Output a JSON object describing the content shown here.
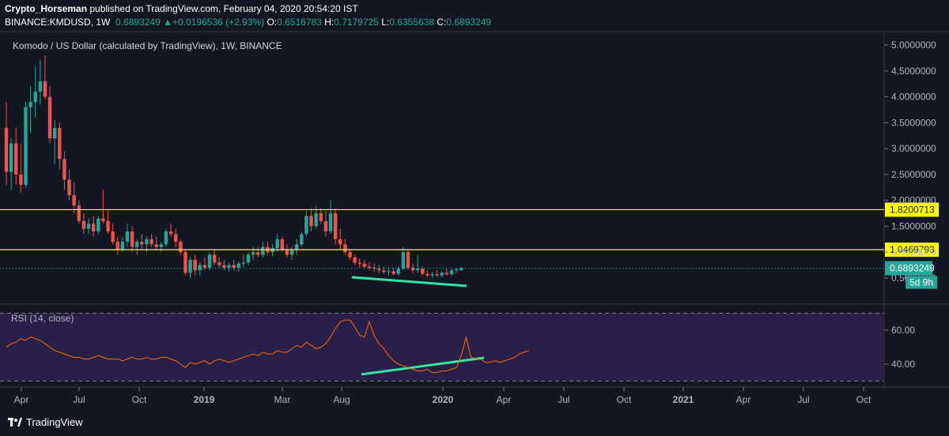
{
  "header": {
    "author": "Crypto_Horseman",
    "published_text": " published on TradingView.com, February 04, 2020 20:54:20 IST",
    "symbol": "BINANCE:KMDUSD, 1W",
    "price": "0.6893249",
    "change": "+0.0196536 (+2.93%)",
    "o_label": "O:",
    "o_value": "0.6516783",
    "h_label": "H:",
    "h_value": "0.7179725",
    "l_label": "L:",
    "l_value": "0.6355638",
    "c_label": "C:",
    "c_value": "0.6893249"
  },
  "main_legend": "Komodo / US Dollar (calculated by TradingView), 1W, BINANCE",
  "rsi_legend": "RSI (14, close)",
  "branding": "TradingView",
  "colors": {
    "up": "#26a69a",
    "down": "#ef5350",
    "level": "#ffff00",
    "trend": "#2ee8a0",
    "rsi": "#ff6d00",
    "rsi_band": "#2a1f48",
    "background": "#131722"
  },
  "chart_data": [
    {
      "type": "candlestick",
      "title": "Komodo / US Dollar (calculated by TradingView), 1W, BINANCE",
      "yticks": [
        "0.5000000",
        "1.0000000",
        "1.5000000",
        "2.0000000",
        "2.5000000",
        "3.0000000",
        "3.5000000",
        "4.0000000",
        "4.5000000",
        "5.0000000"
      ],
      "ylim": [
        0.0,
        5.2
      ],
      "xticks": [
        "Apr",
        "Jul",
        "Oct",
        "2019",
        "Mar",
        "Aug",
        "2020",
        "Apr",
        "Jul",
        "Oct",
        "2021",
        "Apr",
        "Jul",
        "Oct"
      ],
      "horizontal_levels": [
        {
          "value": 1.8200713,
          "label": "1.8200713"
        },
        {
          "value": 1.0469793,
          "label": "1.0469793"
        }
      ],
      "last_price": {
        "value": 0.6893249,
        "label": "0.6893249",
        "countdown": "5d 9h"
      },
      "candles": [
        {
          "o": 3.4,
          "h": 3.9,
          "l": 2.3,
          "c": 2.55
        },
        {
          "o": 2.55,
          "h": 3.2,
          "l": 2.2,
          "c": 3.1
        },
        {
          "o": 3.1,
          "h": 3.4,
          "l": 2.3,
          "c": 2.5
        },
        {
          "o": 2.5,
          "h": 3.1,
          "l": 2.15,
          "c": 2.3
        },
        {
          "o": 2.3,
          "h": 3.9,
          "l": 2.25,
          "c": 3.8
        },
        {
          "o": 3.8,
          "h": 4.2,
          "l": 3.3,
          "c": 3.9
        },
        {
          "o": 3.9,
          "h": 4.6,
          "l": 3.6,
          "c": 4.1
        },
        {
          "o": 4.1,
          "h": 4.7,
          "l": 3.85,
          "c": 4.3
        },
        {
          "o": 4.3,
          "h": 4.8,
          "l": 3.95,
          "c": 4.0
        },
        {
          "o": 4.0,
          "h": 4.2,
          "l": 3.1,
          "c": 3.2
        },
        {
          "o": 3.2,
          "h": 3.55,
          "l": 2.7,
          "c": 3.4
        },
        {
          "o": 3.4,
          "h": 3.5,
          "l": 2.6,
          "c": 2.8
        },
        {
          "o": 2.8,
          "h": 2.95,
          "l": 2.2,
          "c": 2.4
        },
        {
          "o": 2.4,
          "h": 2.6,
          "l": 2.0,
          "c": 2.1
        },
        {
          "o": 2.1,
          "h": 2.35,
          "l": 1.75,
          "c": 1.9
        },
        {
          "o": 1.9,
          "h": 2.0,
          "l": 1.55,
          "c": 1.6
        },
        {
          "o": 1.6,
          "h": 1.75,
          "l": 1.35,
          "c": 1.45
        },
        {
          "o": 1.45,
          "h": 1.65,
          "l": 1.35,
          "c": 1.55
        },
        {
          "o": 1.55,
          "h": 1.7,
          "l": 1.3,
          "c": 1.4
        },
        {
          "o": 1.4,
          "h": 1.7,
          "l": 1.35,
          "c": 1.65
        },
        {
          "o": 1.65,
          "h": 2.2,
          "l": 1.55,
          "c": 1.6
        },
        {
          "o": 1.6,
          "h": 1.8,
          "l": 1.35,
          "c": 1.4
        },
        {
          "o": 1.4,
          "h": 1.55,
          "l": 1.15,
          "c": 1.2
        },
        {
          "o": 1.2,
          "h": 1.3,
          "l": 0.95,
          "c": 1.05
        },
        {
          "o": 1.05,
          "h": 1.3,
          "l": 1.0,
          "c": 1.2
        },
        {
          "o": 1.2,
          "h": 1.55,
          "l": 1.1,
          "c": 1.4
        },
        {
          "o": 1.4,
          "h": 1.5,
          "l": 1.0,
          "c": 1.1
        },
        {
          "o": 1.1,
          "h": 1.25,
          "l": 0.95,
          "c": 1.2
        },
        {
          "o": 1.2,
          "h": 1.35,
          "l": 1.05,
          "c": 1.15
        },
        {
          "o": 1.15,
          "h": 1.3,
          "l": 1.0,
          "c": 1.25
        },
        {
          "o": 1.25,
          "h": 1.35,
          "l": 1.1,
          "c": 1.15
        },
        {
          "o": 1.15,
          "h": 1.3,
          "l": 1.05,
          "c": 1.1
        },
        {
          "o": 1.1,
          "h": 1.2,
          "l": 1.0,
          "c": 1.15
        },
        {
          "o": 1.15,
          "h": 1.45,
          "l": 1.1,
          "c": 1.4
        },
        {
          "o": 1.4,
          "h": 1.55,
          "l": 1.3,
          "c": 1.35
        },
        {
          "o": 1.35,
          "h": 1.45,
          "l": 1.1,
          "c": 1.2
        },
        {
          "o": 1.2,
          "h": 1.25,
          "l": 0.95,
          "c": 1.0
        },
        {
          "o": 1.0,
          "h": 1.05,
          "l": 0.55,
          "c": 0.6
        },
        {
          "o": 0.6,
          "h": 0.9,
          "l": 0.5,
          "c": 0.85
        },
        {
          "o": 0.85,
          "h": 0.95,
          "l": 0.55,
          "c": 0.65
        },
        {
          "o": 0.65,
          "h": 0.8,
          "l": 0.55,
          "c": 0.75
        },
        {
          "o": 0.75,
          "h": 0.9,
          "l": 0.65,
          "c": 0.7
        },
        {
          "o": 0.7,
          "h": 1.0,
          "l": 0.65,
          "c": 0.95
        },
        {
          "o": 0.95,
          "h": 1.05,
          "l": 0.75,
          "c": 0.8
        },
        {
          "o": 0.8,
          "h": 0.9,
          "l": 0.7,
          "c": 0.75
        },
        {
          "o": 0.75,
          "h": 0.85,
          "l": 0.65,
          "c": 0.7
        },
        {
          "o": 0.7,
          "h": 0.8,
          "l": 0.62,
          "c": 0.75
        },
        {
          "o": 0.75,
          "h": 0.85,
          "l": 0.65,
          "c": 0.7
        },
        {
          "o": 0.7,
          "h": 0.82,
          "l": 0.62,
          "c": 0.78
        },
        {
          "o": 0.78,
          "h": 0.95,
          "l": 0.7,
          "c": 0.8
        },
        {
          "o": 0.8,
          "h": 1.0,
          "l": 0.75,
          "c": 0.95
        },
        {
          "o": 0.95,
          "h": 1.1,
          "l": 0.85,
          "c": 1.0
        },
        {
          "o": 1.0,
          "h": 1.1,
          "l": 0.9,
          "c": 0.95
        },
        {
          "o": 0.95,
          "h": 1.2,
          "l": 0.9,
          "c": 1.1
        },
        {
          "o": 1.1,
          "h": 1.2,
          "l": 0.95,
          "c": 1.0
        },
        {
          "o": 1.0,
          "h": 1.15,
          "l": 0.92,
          "c": 1.08
        },
        {
          "o": 1.08,
          "h": 1.35,
          "l": 1.0,
          "c": 1.25
        },
        {
          "o": 1.25,
          "h": 1.3,
          "l": 1.0,
          "c": 1.05
        },
        {
          "o": 1.05,
          "h": 1.15,
          "l": 0.9,
          "c": 0.95
        },
        {
          "o": 0.95,
          "h": 1.1,
          "l": 0.85,
          "c": 1.05
        },
        {
          "o": 1.05,
          "h": 1.25,
          "l": 0.95,
          "c": 1.15
        },
        {
          "o": 1.15,
          "h": 1.4,
          "l": 1.1,
          "c": 1.35
        },
        {
          "o": 1.35,
          "h": 1.8,
          "l": 1.3,
          "c": 1.7
        },
        {
          "o": 1.7,
          "h": 1.85,
          "l": 1.4,
          "c": 1.5
        },
        {
          "o": 1.5,
          "h": 1.9,
          "l": 1.45,
          "c": 1.75
        },
        {
          "o": 1.75,
          "h": 1.85,
          "l": 1.55,
          "c": 1.6
        },
        {
          "o": 1.6,
          "h": 1.8,
          "l": 1.3,
          "c": 1.4
        },
        {
          "o": 1.4,
          "h": 2.0,
          "l": 1.35,
          "c": 1.75
        },
        {
          "o": 1.75,
          "h": 1.85,
          "l": 1.15,
          "c": 1.25
        },
        {
          "o": 1.25,
          "h": 1.45,
          "l": 1.05,
          "c": 1.15
        },
        {
          "o": 1.15,
          "h": 1.25,
          "l": 0.95,
          "c": 1.0
        },
        {
          "o": 1.0,
          "h": 1.05,
          "l": 0.85,
          "c": 0.9
        },
        {
          "o": 0.9,
          "h": 0.95,
          "l": 0.75,
          "c": 0.8
        },
        {
          "o": 0.8,
          "h": 0.88,
          "l": 0.7,
          "c": 0.78
        },
        {
          "o": 0.78,
          "h": 0.85,
          "l": 0.68,
          "c": 0.72
        },
        {
          "o": 0.72,
          "h": 0.8,
          "l": 0.65,
          "c": 0.7
        },
        {
          "o": 0.7,
          "h": 0.78,
          "l": 0.62,
          "c": 0.68
        },
        {
          "o": 0.68,
          "h": 0.75,
          "l": 0.6,
          "c": 0.65
        },
        {
          "o": 0.65,
          "h": 0.72,
          "l": 0.58,
          "c": 0.62
        },
        {
          "o": 0.62,
          "h": 0.7,
          "l": 0.55,
          "c": 0.63
        },
        {
          "o": 0.63,
          "h": 0.7,
          "l": 0.55,
          "c": 0.58
        },
        {
          "o": 0.58,
          "h": 0.72,
          "l": 0.55,
          "c": 0.68
        },
        {
          "o": 0.68,
          "h": 1.1,
          "l": 0.65,
          "c": 1.0
        },
        {
          "o": 1.0,
          "h": 1.05,
          "l": 0.65,
          "c": 0.7
        },
        {
          "o": 0.7,
          "h": 0.78,
          "l": 0.6,
          "c": 0.65
        },
        {
          "o": 0.65,
          "h": 0.95,
          "l": 0.6,
          "c": 0.68
        },
        {
          "o": 0.68,
          "h": 0.72,
          "l": 0.55,
          "c": 0.58
        },
        {
          "o": 0.58,
          "h": 0.65,
          "l": 0.52,
          "c": 0.55
        },
        {
          "o": 0.55,
          "h": 0.62,
          "l": 0.5,
          "c": 0.57
        },
        {
          "o": 0.57,
          "h": 0.65,
          "l": 0.52,
          "c": 0.55
        },
        {
          "o": 0.55,
          "h": 0.63,
          "l": 0.5,
          "c": 0.6
        },
        {
          "o": 0.6,
          "h": 0.68,
          "l": 0.55,
          "c": 0.57
        },
        {
          "o": 0.57,
          "h": 0.68,
          "l": 0.55,
          "c": 0.65
        },
        {
          "o": 0.65,
          "h": 0.7,
          "l": 0.6,
          "c": 0.67
        },
        {
          "o": 0.6516783,
          "h": 0.7179725,
          "l": 0.6355638,
          "c": 0.6893249
        }
      ]
    },
    {
      "type": "line",
      "title": "RSI (14, close)",
      "yticks": [
        "40.00",
        "60.00"
      ],
      "ylim": [
        25,
        72
      ],
      "band": [
        30,
        70
      ],
      "values": [
        50,
        52,
        53,
        55,
        54,
        56,
        55,
        54,
        52,
        50,
        48,
        47,
        46,
        45,
        44,
        44,
        43,
        43,
        44,
        45,
        44,
        43,
        43,
        43,
        42,
        43,
        44,
        43,
        43,
        44,
        43,
        43,
        44,
        44,
        43,
        42,
        40,
        38,
        41,
        40,
        41,
        42,
        40,
        42,
        43,
        42,
        41,
        42,
        43,
        44,
        45,
        46,
        45,
        47,
        46,
        46,
        48,
        47,
        47,
        49,
        51,
        50,
        53,
        51,
        49,
        50,
        52,
        56,
        61,
        65,
        66,
        66,
        62,
        57,
        56,
        65,
        57,
        52,
        49,
        45,
        42,
        40,
        39,
        38,
        37,
        36,
        36,
        37,
        35,
        35,
        36,
        36,
        37,
        38,
        45,
        56,
        44,
        43,
        43,
        41,
        41,
        42,
        41,
        42,
        43,
        44,
        46,
        47,
        48
      ]
    }
  ]
}
